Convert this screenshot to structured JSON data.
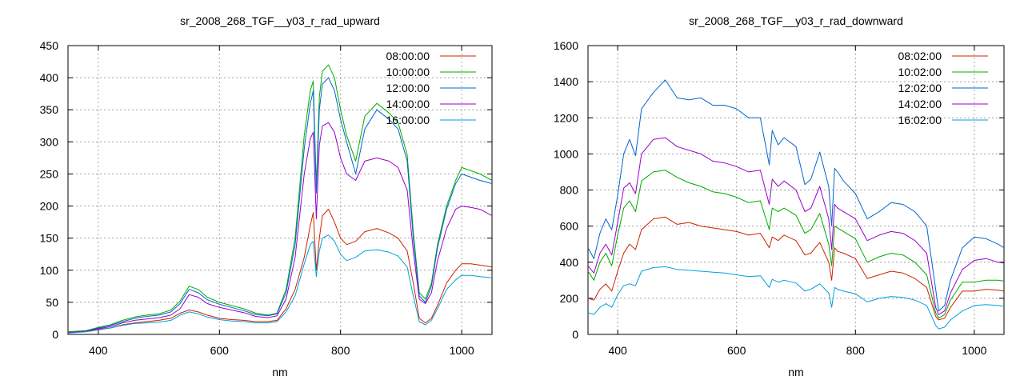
{
  "chart_data": [
    {
      "type": "line",
      "title": "sr_2008_268_TGF__y03_r_rad_upward",
      "xlabel": "nm",
      "ylabel": "",
      "xlim": [
        350,
        1050
      ],
      "ylim": [
        0,
        450
      ],
      "xticks": [
        400,
        600,
        800,
        1000
      ],
      "yticks": [
        0,
        50,
        100,
        150,
        200,
        250,
        300,
        350,
        400,
        450
      ],
      "grid": true,
      "legend_position": "top-right",
      "x": [
        350,
        380,
        400,
        420,
        440,
        460,
        480,
        500,
        520,
        535,
        550,
        565,
        580,
        600,
        620,
        640,
        660,
        680,
        695,
        710,
        725,
        740,
        750,
        755,
        760,
        765,
        770,
        780,
        790,
        800,
        810,
        825,
        840,
        860,
        880,
        895,
        910,
        920,
        930,
        940,
        950,
        960,
        975,
        990,
        1000,
        1015,
        1030,
        1050
      ],
      "series": [
        {
          "name": "08:00:00",
          "color": "#cc2200",
          "values": [
            4,
            5,
            8,
            10,
            15,
            18,
            20,
            22,
            25,
            33,
            38,
            35,
            30,
            25,
            23,
            22,
            20,
            20,
            22,
            40,
            70,
            120,
            170,
            190,
            100,
            150,
            185,
            195,
            175,
            150,
            140,
            145,
            160,
            165,
            158,
            150,
            130,
            80,
            25,
            18,
            25,
            45,
            80,
            100,
            110,
            110,
            108,
            105
          ]
        },
        {
          "name": "10:00:00",
          "color": "#00aa00",
          "values": [
            4,
            6,
            11,
            15,
            22,
            27,
            30,
            32,
            38,
            52,
            75,
            70,
            58,
            50,
            45,
            40,
            33,
            30,
            33,
            70,
            150,
            310,
            380,
            395,
            230,
            370,
            410,
            420,
            400,
            350,
            310,
            270,
            340,
            360,
            345,
            330,
            280,
            160,
            65,
            55,
            80,
            140,
            200,
            240,
            260,
            255,
            250,
            240
          ]
        },
        {
          "name": "12:00:00",
          "color": "#0066cc",
          "values": [
            3,
            5,
            10,
            14,
            20,
            25,
            28,
            30,
            35,
            48,
            70,
            65,
            54,
            47,
            42,
            37,
            31,
            29,
            32,
            65,
            140,
            290,
            360,
            380,
            220,
            350,
            390,
            400,
            380,
            335,
            300,
            250,
            320,
            350,
            335,
            320,
            270,
            150,
            60,
            50,
            75,
            135,
            195,
            235,
            250,
            245,
            240,
            235
          ]
        },
        {
          "name": "14:00:00",
          "color": "#9900cc",
          "values": [
            3,
            5,
            9,
            12,
            18,
            22,
            24,
            26,
            30,
            40,
            62,
            58,
            48,
            42,
            38,
            34,
            28,
            26,
            29,
            55,
            120,
            250,
            305,
            315,
            180,
            295,
            325,
            330,
            315,
            275,
            250,
            240,
            270,
            275,
            270,
            260,
            225,
            130,
            55,
            48,
            65,
            115,
            165,
            195,
            200,
            198,
            195,
            185
          ]
        },
        {
          "name": "16:00:00",
          "color": "#00a0dd",
          "values": [
            2,
            4,
            7,
            10,
            14,
            17,
            18,
            19,
            22,
            30,
            35,
            32,
            27,
            23,
            21,
            20,
            18,
            18,
            20,
            35,
            60,
            110,
            140,
            145,
            90,
            130,
            150,
            155,
            145,
            125,
            115,
            120,
            130,
            132,
            128,
            122,
            105,
            60,
            20,
            15,
            22,
            40,
            70,
            85,
            92,
            92,
            90,
            88
          ]
        }
      ]
    },
    {
      "type": "line",
      "title": "sr_2008_268_TGF__y03_r_rad_downward",
      "xlabel": "nm",
      "ylabel": "",
      "xlim": [
        350,
        1050
      ],
      "ylim": [
        0,
        1600
      ],
      "xticks": [
        400,
        600,
        800,
        1000
      ],
      "yticks": [
        0,
        200,
        400,
        600,
        800,
        1000,
        1200,
        1400,
        1600
      ],
      "grid": true,
      "legend_position": "top-right",
      "x": [
        350,
        360,
        370,
        380,
        390,
        400,
        410,
        420,
        430,
        440,
        460,
        480,
        500,
        520,
        540,
        560,
        580,
        600,
        620,
        640,
        655,
        660,
        670,
        680,
        700,
        715,
        725,
        740,
        755,
        760,
        765,
        770,
        780,
        800,
        820,
        840,
        860,
        880,
        900,
        920,
        935,
        940,
        950,
        960,
        980,
        1000,
        1020,
        1040,
        1050
      ],
      "series": [
        {
          "name": "08:02:00",
          "color": "#cc2200",
          "values": [
            200,
            190,
            250,
            280,
            240,
            350,
            450,
            500,
            470,
            580,
            640,
            650,
            610,
            620,
            600,
            590,
            580,
            570,
            550,
            560,
            480,
            540,
            520,
            550,
            520,
            440,
            450,
            510,
            400,
            300,
            480,
            460,
            450,
            420,
            310,
            330,
            350,
            340,
            310,
            260,
            100,
            80,
            90,
            150,
            240,
            240,
            250,
            245,
            240
          ]
        },
        {
          "name": "10:02:00",
          "color": "#00aa00",
          "values": [
            350,
            300,
            400,
            450,
            380,
            550,
            700,
            740,
            680,
            850,
            900,
            910,
            870,
            840,
            820,
            790,
            780,
            760,
            730,
            740,
            580,
            700,
            680,
            700,
            660,
            560,
            580,
            670,
            500,
            380,
            600,
            590,
            570,
            530,
            400,
            430,
            450,
            440,
            400,
            330,
            120,
            90,
            110,
            190,
            290,
            290,
            300,
            300,
            295
          ]
        },
        {
          "name": "12:02:00",
          "color": "#0066cc",
          "values": [
            480,
            420,
            560,
            640,
            580,
            770,
            1000,
            1080,
            990,
            1250,
            1340,
            1410,
            1310,
            1300,
            1310,
            1270,
            1270,
            1250,
            1200,
            1200,
            940,
            1130,
            1050,
            1090,
            1040,
            830,
            860,
            1010,
            820,
            600,
            920,
            900,
            850,
            780,
            640,
            680,
            730,
            720,
            680,
            600,
            250,
            130,
            160,
            300,
            480,
            540,
            530,
            500,
            480
          ]
        },
        {
          "name": "14:02:00",
          "color": "#9900cc",
          "values": [
            380,
            340,
            450,
            500,
            440,
            620,
            810,
            840,
            780,
            1000,
            1080,
            1090,
            1040,
            1020,
            1000,
            960,
            950,
            930,
            900,
            910,
            720,
            860,
            820,
            850,
            800,
            680,
            700,
            820,
            640,
            470,
            720,
            700,
            680,
            640,
            520,
            550,
            570,
            560,
            520,
            450,
            150,
            110,
            130,
            230,
            360,
            410,
            420,
            400,
            395
          ]
        },
        {
          "name": "16:02:00",
          "color": "#00a0dd",
          "values": [
            120,
            110,
            150,
            170,
            150,
            220,
            270,
            280,
            270,
            350,
            370,
            375,
            360,
            355,
            350,
            345,
            340,
            330,
            320,
            325,
            260,
            305,
            290,
            300,
            285,
            240,
            250,
            280,
            230,
            150,
            260,
            250,
            240,
            225,
            180,
            200,
            210,
            205,
            190,
            160,
            50,
            30,
            40,
            80,
            130,
            160,
            165,
            160,
            155
          ]
        }
      ]
    }
  ]
}
